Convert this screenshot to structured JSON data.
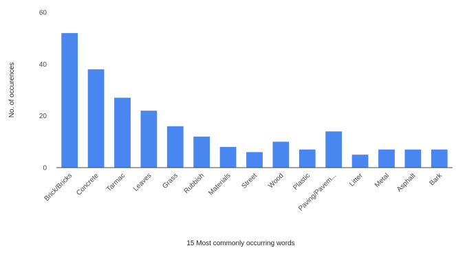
{
  "chart_data": {
    "type": "bar",
    "categories": [
      "Brick/Bricks",
      "Concrete",
      "Tarmac",
      "Leaves",
      "Grass",
      "Rubbish",
      "Materials",
      "Street",
      "Wood",
      "Plastic",
      "Paving/Pavem...",
      "Litter",
      "Metal",
      "Asphalt",
      "Bark"
    ],
    "values": [
      52,
      38,
      27,
      22,
      16,
      12,
      8,
      6,
      10,
      7,
      14,
      5,
      7,
      7,
      7
    ],
    "title": "",
    "xlabel": "15 Most commonly occurring words",
    "ylabel": "No. of occurences",
    "ylim": [
      0,
      60
    ],
    "yticks": [
      0,
      20,
      40,
      60
    ],
    "grid": false,
    "bar_color": "#4a86f0"
  }
}
